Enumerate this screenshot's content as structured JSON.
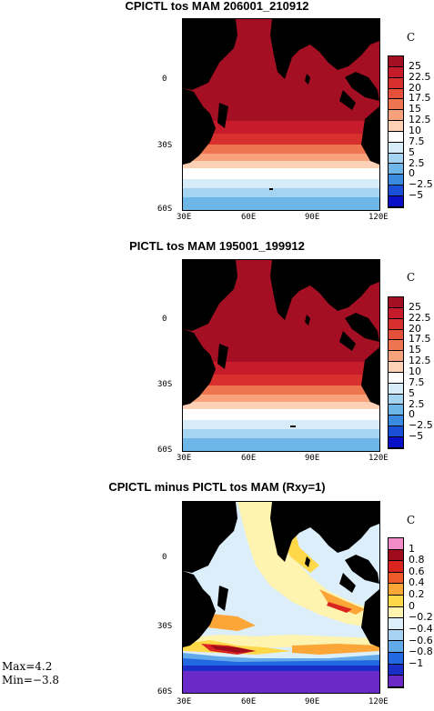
{
  "panels": [
    {
      "title": "CPICTL tos MAM 206001_210912",
      "unit": "C",
      "lat_labels": [
        "0",
        "30S",
        "60S"
      ],
      "lon_labels": [
        "30E",
        "60E",
        "90E",
        "120E"
      ],
      "colorbar_labels": [
        "25",
        "22.5",
        "20",
        "17.5",
        "15",
        "12.5",
        "10",
        "7.5",
        "5",
        "2.5",
        "0",
        "−2.5",
        "−5"
      ],
      "colorbar_colors": [
        "#a50f23",
        "#c51b2a",
        "#d7302d",
        "#e4503a",
        "#ef7450",
        "#f7a27a",
        "#fcd1b6",
        "#ffffff",
        "#d6ecf9",
        "#a5d4f2",
        "#6fb6e8",
        "#3a8ae0",
        "#1a4fd8",
        "#0a10c8"
      ]
    },
    {
      "title": "PICTL tos MAM 195001_199912",
      "unit": "C",
      "lat_labels": [
        "0",
        "30S",
        "60S"
      ],
      "lon_labels": [
        "30E",
        "60E",
        "90E",
        "120E"
      ],
      "colorbar_labels": [
        "25",
        "22.5",
        "20",
        "17.5",
        "15",
        "12.5",
        "10",
        "7.5",
        "5",
        "2.5",
        "0",
        "−2.5",
        "−5"
      ],
      "colorbar_colors": [
        "#a50f23",
        "#c51b2a",
        "#d7302d",
        "#e4503a",
        "#ef7450",
        "#f7a27a",
        "#fcd1b6",
        "#ffffff",
        "#d6ecf9",
        "#a5d4f2",
        "#6fb6e8",
        "#3a8ae0",
        "#1a4fd8",
        "#0a10c8"
      ]
    },
    {
      "title": "CPICTL minus PICTL tos MAM (Rxy=1)",
      "unit": "C",
      "lat_labels": [
        "0",
        "30S",
        "60S"
      ],
      "lon_labels": [
        "30E",
        "60E",
        "90E",
        "120E"
      ],
      "colorbar_labels": [
        "1",
        "0.8",
        "0.6",
        "0.4",
        "0.2",
        "0",
        "−0.2",
        "−0.4",
        "−0.6",
        "−0.8",
        "−1"
      ],
      "colorbar_colors": [
        "#f18cc8",
        "#a00c1c",
        "#d9241f",
        "#ef5a2a",
        "#fba636",
        "#ffd84a",
        "#fff3b0",
        "#dbeefa",
        "#a9d3f2",
        "#62a9ea",
        "#2268e0",
        "#1a2fc8",
        "#6a2ac8"
      ]
    }
  ],
  "stats": {
    "max": "Max=4.2",
    "min": "Min=−3.8"
  },
  "land_color": "#000000"
}
